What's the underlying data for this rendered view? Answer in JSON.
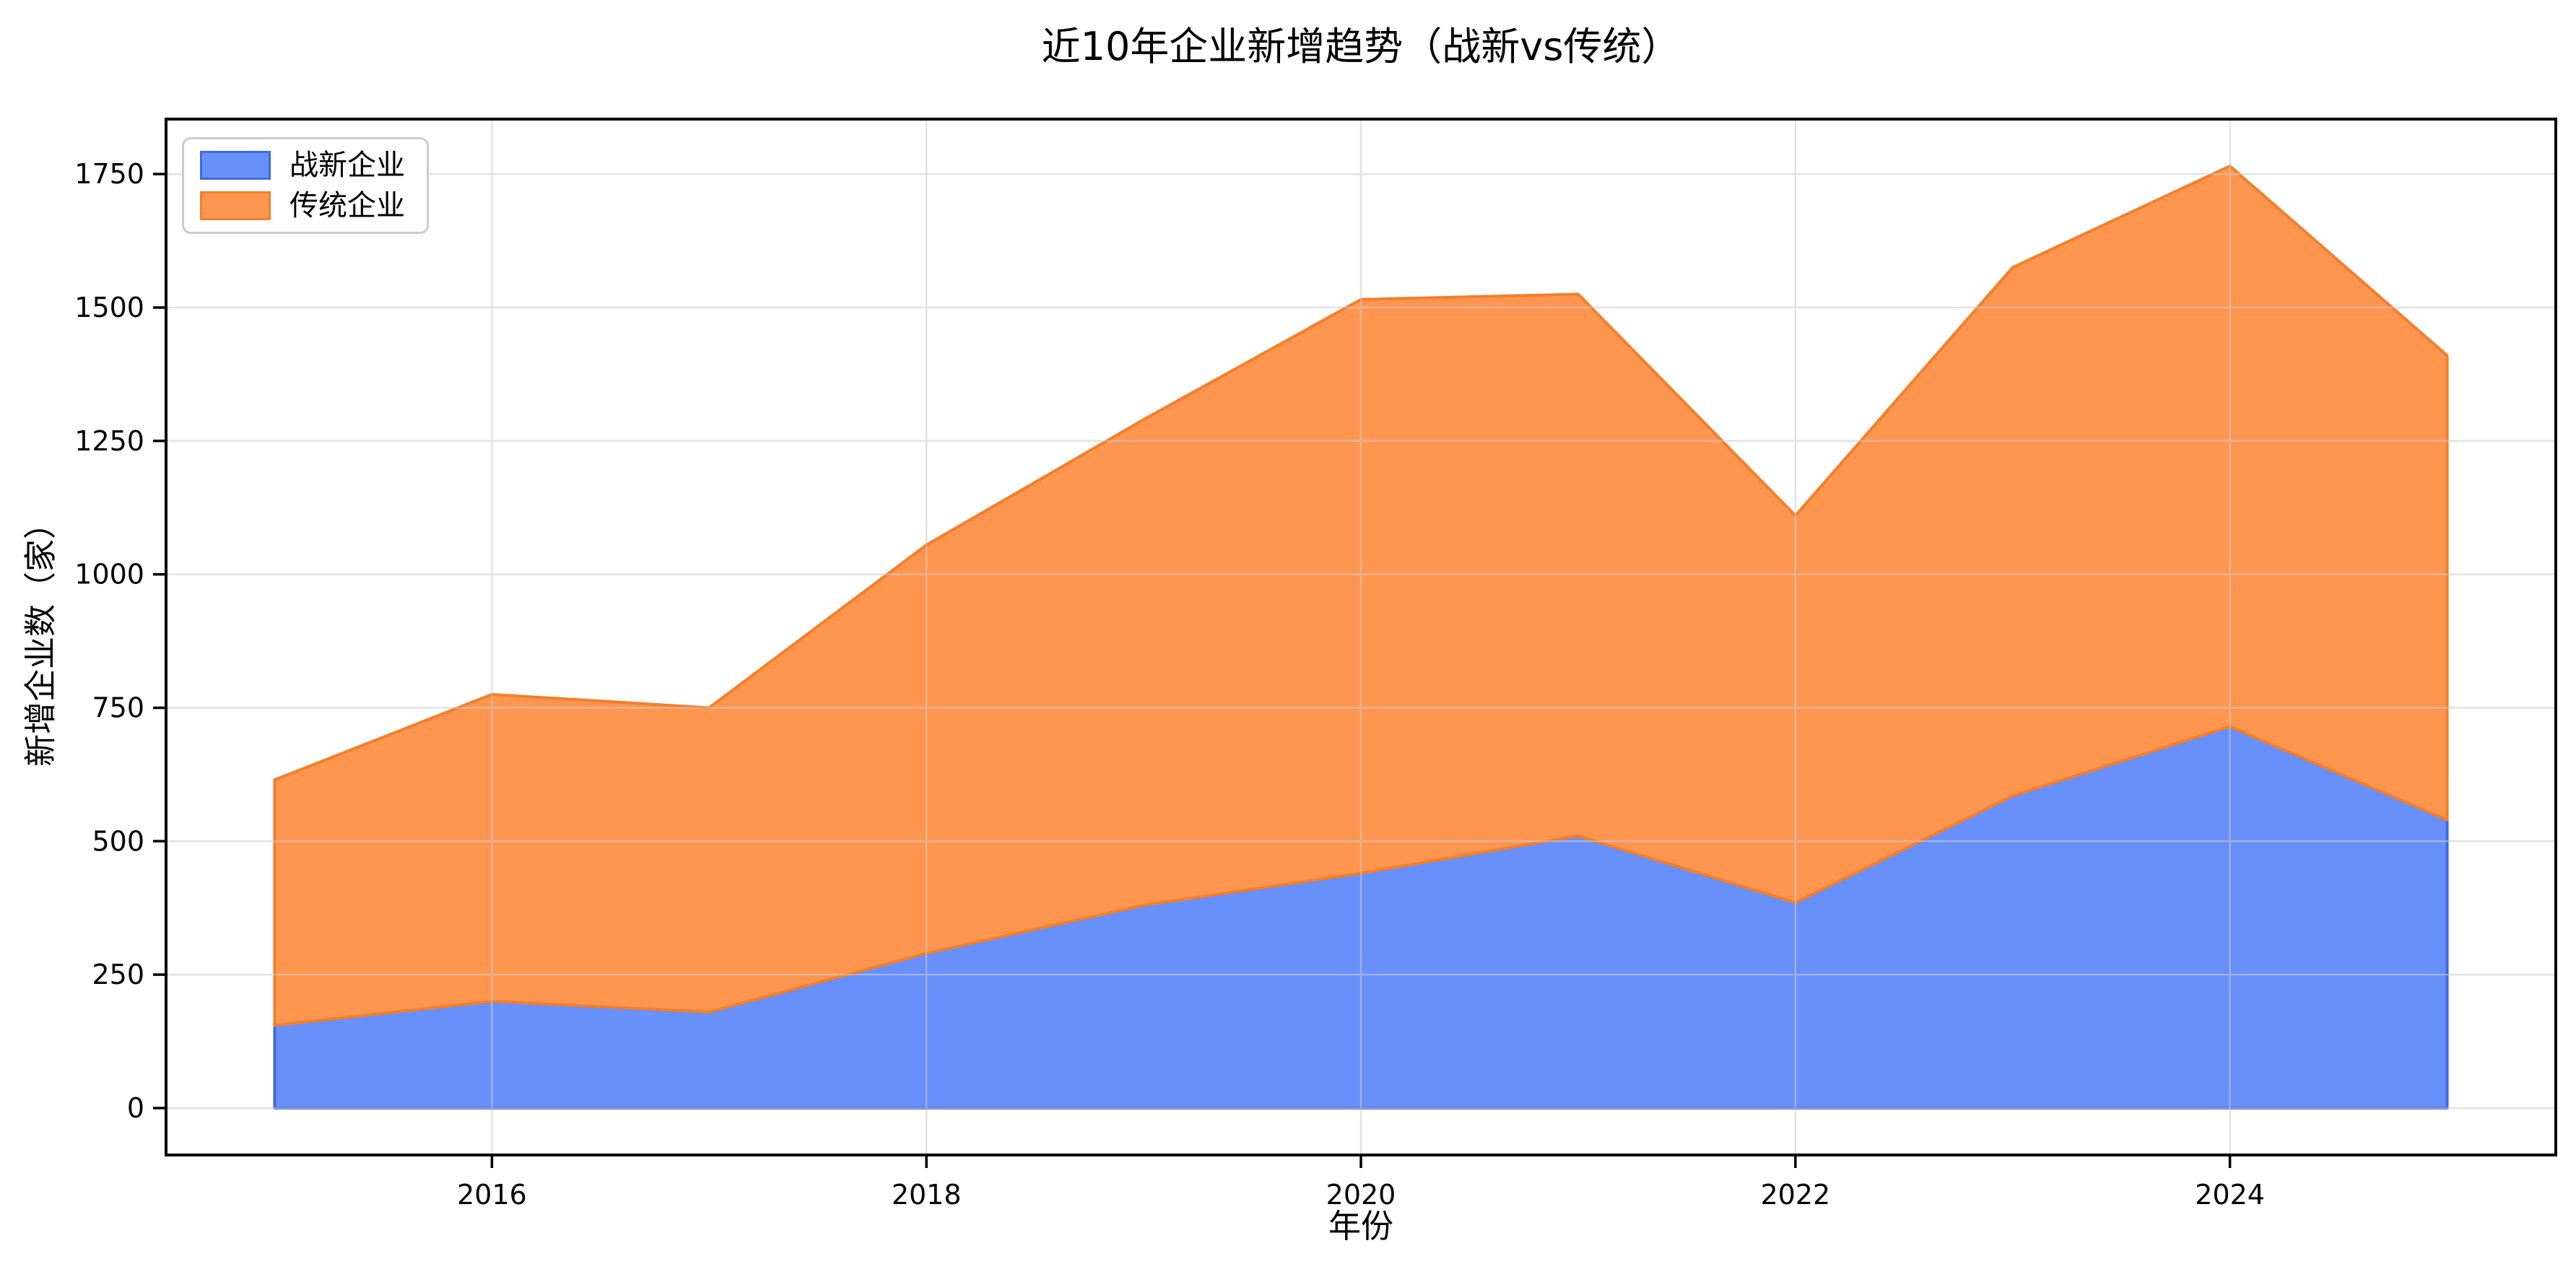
{
  "title": "近10年企业新增趋势（战新vs传统）",
  "legend": {
    "items": [
      {
        "label": "战新企业"
      },
      {
        "label": "传统企业"
      }
    ]
  },
  "chart_data": {
    "type": "area",
    "stacked": true,
    "title": "近10年企业新增趋势（战新vs传统）",
    "xlabel": "年份",
    "ylabel": "新增企业数（家）",
    "x": [
      2015,
      2016,
      2017,
      2018,
      2019,
      2020,
      2021,
      2022,
      2023,
      2024,
      2025
    ],
    "series": [
      {
        "name": "战新企业",
        "values": [
          155,
          200,
          180,
          290,
          380,
          440,
          510,
          385,
          585,
          715,
          540
        ],
        "fill": "#6890FA",
        "edge": "#4169E1"
      },
      {
        "name": "传统企业",
        "values": [
          460,
          575,
          570,
          765,
          910,
          1075,
          1015,
          725,
          990,
          1050,
          870
        ],
        "fill": "#FF9650",
        "edge": "#F47E2A"
      }
    ],
    "stacked_totals": [
      615,
      775,
      750,
      1055,
      1290,
      1515,
      1525,
      1110,
      1575,
      1765,
      1410
    ],
    "xticks": [
      2016,
      2018,
      2020,
      2022,
      2024
    ],
    "yticks": [
      0,
      250,
      500,
      750,
      1000,
      1250,
      1500,
      1750
    ],
    "xlim": [
      2014.5,
      2025.5
    ],
    "ylim": [
      -88,
      1853
    ],
    "grid": true,
    "legend_position": "upper-left",
    "grid_color": "#cccccc",
    "spine_color": "#000000"
  }
}
